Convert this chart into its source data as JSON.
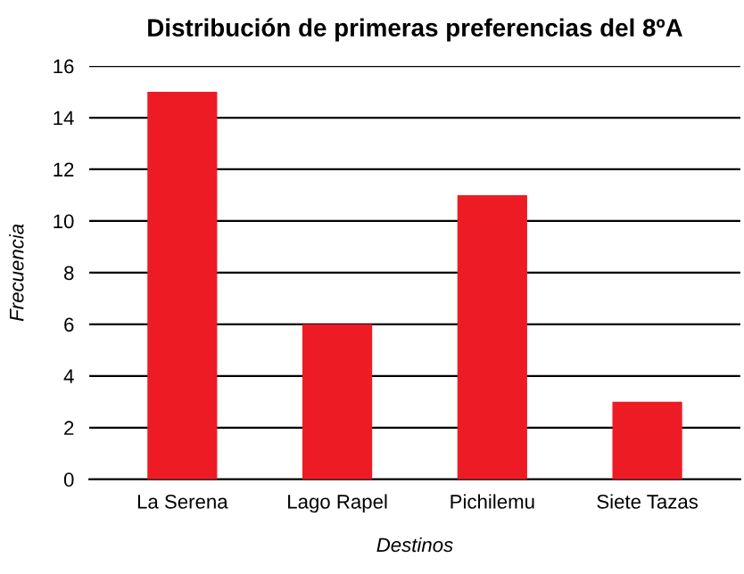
{
  "chart_data": {
    "type": "bar",
    "title": "Distribución de primeras preferencias del 8ºA",
    "xlabel": "Destinos",
    "ylabel": "Frecuencia",
    "categories": [
      "La Serena",
      "Lago Rapel",
      "Pichilemu",
      "Siete Tazas"
    ],
    "values": [
      15,
      6,
      11,
      3
    ],
    "color": "#ed1c24",
    "ylim": [
      0,
      16
    ],
    "yticks": [
      0,
      2,
      4,
      6,
      8,
      10,
      12,
      14,
      16
    ],
    "grid": "y"
  }
}
